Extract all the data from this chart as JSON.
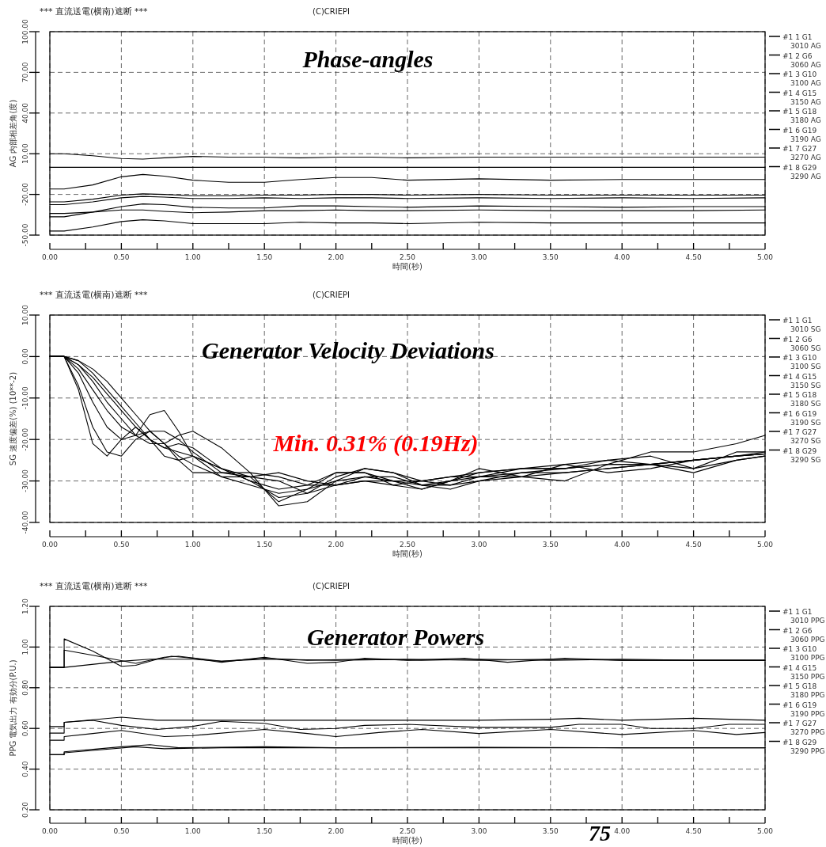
{
  "chart_data": [
    {
      "type": "line",
      "title": "Phase-angles",
      "subtitle": "*** 直流送電(横南)遮断 ***",
      "xlabel": "時間(秒)",
      "ylabel": "AG 内部相差角(度)",
      "annotations": [
        "(C)CRIEPI"
      ],
      "xlim": [
        0,
        5
      ],
      "ylim": [
        -50,
        100
      ],
      "grid": true,
      "legend": "right",
      "line_style": "solid",
      "xticks": [
        {
          "value": 0,
          "label": "0.00"
        },
        {
          "value": 0.25,
          "label": null
        },
        {
          "value": 0.5,
          "label": "0.50"
        },
        {
          "value": 0.75,
          "label": null
        },
        {
          "value": 1,
          "label": "1.00"
        },
        {
          "value": 1.25,
          "label": null
        },
        {
          "value": 1.5,
          "label": "1.50"
        },
        {
          "value": 1.75,
          "label": null
        },
        {
          "value": 2,
          "label": "2.00"
        },
        {
          "value": 2.25,
          "label": null
        },
        {
          "value": 2.5,
          "label": "2.50"
        },
        {
          "value": 2.75,
          "label": null
        },
        {
          "value": 3,
          "label": "3.00"
        },
        {
          "value": 3.25,
          "label": null
        },
        {
          "value": 3.5,
          "label": "3.50"
        },
        {
          "value": 3.75,
          "label": null
        },
        {
          "value": 4,
          "label": "4.00"
        },
        {
          "value": 4.25,
          "label": null
        },
        {
          "value": 4.5,
          "label": "4.50"
        },
        {
          "value": 4.75,
          "label": null
        },
        {
          "value": 5,
          "label": "5.00"
        }
      ],
      "yticks": [
        {
          "value": 100,
          "label": "100.00"
        },
        {
          "value": 70,
          "label": "70.00"
        },
        {
          "value": 40,
          "label": "40.00"
        },
        {
          "value": 10,
          "label": "10.00"
        },
        {
          "value": -20,
          "label": "-20.00"
        },
        {
          "value": -50,
          "label": "-50.00"
        }
      ],
      "x": [
        0,
        0.1,
        0.3,
        0.5,
        0.65,
        0.8,
        1.0,
        1.25,
        1.5,
        1.75,
        2.0,
        2.25,
        2.5,
        3.0,
        3.5,
        4.0,
        4.5,
        5.0
      ],
      "series": [
        {
          "name": "#1 1 G1 3010 AG",
          "color": "#000000",
          "values": [
            -16,
            -16,
            -13,
            -7,
            -5.3,
            -6.5,
            -9.5,
            -11,
            -11,
            -9,
            -7.5,
            -7.5,
            -9.5,
            -8.5,
            -9.5,
            -9,
            -9,
            -9
          ]
        },
        {
          "name": "#1 2 G6 3060 AG",
          "color": "#000000",
          "values": [
            -25.5,
            -25.5,
            -23.5,
            -20.5,
            -19.6,
            -20,
            -21,
            -21,
            -20.5,
            -20.5,
            -20,
            -20,
            -20.5,
            -20,
            -20.5,
            -20.5,
            -20.5,
            -20.5
          ]
        },
        {
          "name": "#1 3 G10 3100 AG",
          "color": "#000000",
          "values": [
            -27.5,
            -27.5,
            -25.5,
            -22.5,
            -21.5,
            -22,
            -23,
            -23,
            -22.5,
            -23,
            -22.5,
            -22.5,
            -23,
            -22.5,
            -23,
            -22.5,
            -23,
            -22.5
          ]
        },
        {
          "name": "#1 4 G15 3150 AG",
          "color": "#000000",
          "values": [
            0,
            0,
            0,
            0,
            0,
            0,
            0,
            0,
            0,
            0,
            0,
            0,
            0,
            0,
            0,
            0,
            0,
            0
          ]
        },
        {
          "name": "#1 5 G18 3180 AG",
          "color": "#000000",
          "values": [
            10,
            10,
            8.5,
            6.5,
            6,
            7,
            8,
            7.5,
            7.5,
            7,
            7.5,
            7.5,
            7,
            7.5,
            7.5,
            7.5,
            7.5,
            7.5
          ]
        },
        {
          "name": "#1 6 G19 3190 AG",
          "color": "#000000",
          "values": [
            -34,
            -34,
            -33,
            -31.5,
            -31.5,
            -32.5,
            -33.5,
            -33,
            -32,
            -32,
            -31.5,
            -32,
            -32,
            -31.5,
            -32,
            -32,
            -32,
            -31.5
          ]
        },
        {
          "name": "#1 7 G27 3270 AG",
          "color": "#000000",
          "values": [
            -36.5,
            -36.5,
            -33,
            -29,
            -27,
            -27.5,
            -29.5,
            -30,
            -30,
            -28.5,
            -28.5,
            -29,
            -29.5,
            -28.5,
            -29,
            -29.5,
            -29,
            -29
          ]
        },
        {
          "name": "#1 8 G29 3290 AG",
          "color": "#000000",
          "values": [
            -47,
            -47,
            -44,
            -40,
            -38.7,
            -39.5,
            -41.5,
            -41.5,
            -41.5,
            -40.5,
            -41,
            -41,
            -41.5,
            -40.5,
            -41,
            -41,
            -41,
            -41
          ]
        }
      ]
    },
    {
      "type": "line",
      "title": "Generator Velocity Deviations",
      "subtitle": "*** 直流送電(横南)遮断 ***",
      "xlabel": "時間(秒)",
      "ylabel": "SG 速度偏差(%) (10**-2)",
      "annotations": [
        "(C)CRIEPI",
        "Min. 0.31% (0.19Hz)"
      ],
      "xlim": [
        0,
        5
      ],
      "ylim": [
        -40,
        10
      ],
      "grid": true,
      "legend": "right",
      "line_style": "solid",
      "xticks": [
        {
          "value": 0,
          "label": "0.00"
        },
        {
          "value": 0.25,
          "label": null
        },
        {
          "value": 0.5,
          "label": "0.50"
        },
        {
          "value": 0.75,
          "label": null
        },
        {
          "value": 1,
          "label": "1.00"
        },
        {
          "value": 1.25,
          "label": null
        },
        {
          "value": 1.5,
          "label": "1.50"
        },
        {
          "value": 1.75,
          "label": null
        },
        {
          "value": 2,
          "label": "2.00"
        },
        {
          "value": 2.25,
          "label": null
        },
        {
          "value": 2.5,
          "label": "2.50"
        },
        {
          "value": 2.75,
          "label": null
        },
        {
          "value": 3,
          "label": "3.00"
        },
        {
          "value": 3.25,
          "label": null
        },
        {
          "value": 3.5,
          "label": "3.50"
        },
        {
          "value": 3.75,
          "label": null
        },
        {
          "value": 4,
          "label": "4.00"
        },
        {
          "value": 4.25,
          "label": null
        },
        {
          "value": 4.5,
          "label": "4.50"
        },
        {
          "value": 4.75,
          "label": null
        },
        {
          "value": 5,
          "label": "5.00"
        }
      ],
      "yticks": [
        {
          "value": 10,
          "label": "10.00"
        },
        {
          "value": 0,
          "label": "0.00"
        },
        {
          "value": -10,
          "label": "-10.00"
        },
        {
          "value": -20,
          "label": "-20.00"
        },
        {
          "value": -30,
          "label": "-30.00"
        },
        {
          "value": -40,
          "label": "-40.00"
        }
      ],
      "x": [
        0,
        0.1,
        0.2,
        0.3,
        0.4,
        0.5,
        0.6,
        0.7,
        0.8,
        0.9,
        1.0,
        1.2,
        1.4,
        1.6,
        1.8,
        2.0,
        2.2,
        2.4,
        2.6,
        2.8,
        3.0,
        3.3,
        3.6,
        3.9,
        4.2,
        4.5,
        4.8,
        5.0
      ],
      "series": [
        {
          "name": "#1 1 G1 3010 SG",
          "color": "#000000",
          "values": [
            0,
            0,
            -1,
            -3,
            -6,
            -10,
            -14,
            -18,
            -21,
            -24,
            -26,
            -29,
            -31,
            -33,
            -32,
            -30,
            -29,
            -30,
            -30,
            -29,
            -28,
            -27,
            -27,
            -26,
            -26,
            -25,
            -24,
            -23.5
          ]
        },
        {
          "name": "#1 2 G6 3060 SG",
          "color": "#000000",
          "values": [
            0,
            0,
            -2,
            -5,
            -9,
            -13,
            -17,
            -20,
            -22,
            -23,
            -24,
            -27,
            -30,
            -34,
            -33,
            -29,
            -27,
            -28,
            -31,
            -31,
            -29,
            -27,
            -26,
            -28,
            -27,
            -25,
            -24,
            -23
          ]
        },
        {
          "name": "#1 3 G10 3100 SG",
          "color": "#000000",
          "values": [
            0,
            0,
            -3,
            -8,
            -13,
            -17,
            -19,
            -18,
            -18,
            -20,
            -23,
            -28,
            -29,
            -28,
            -30,
            -31,
            -30,
            -30,
            -31,
            -30,
            -29,
            -29,
            -28,
            -27,
            -26,
            -25,
            -24,
            -23.5
          ]
        },
        {
          "name": "#1 4 G15 3150 SG",
          "color": "#000000",
          "values": [
            0,
            0,
            -4,
            -11,
            -17,
            -20,
            -19,
            -14,
            -13,
            -18,
            -24,
            -29,
            -29,
            -30,
            -33,
            -31,
            -29,
            -29,
            -31,
            -32,
            -30,
            -28,
            -27,
            -26,
            -26,
            -27,
            -25,
            -24
          ]
        },
        {
          "name": "#1 5 G18 3180 SG",
          "color": "#000000",
          "values": [
            0,
            0,
            -7,
            -17,
            -23,
            -24,
            -20,
            -18,
            -21,
            -25,
            -28,
            -28,
            -28,
            -29,
            -31,
            -31,
            -30,
            -31,
            -30,
            -29,
            -29,
            -28,
            -28,
            -27,
            -26,
            -25,
            -24,
            -23.5
          ]
        },
        {
          "name": "#1 6 G19 3190 SG",
          "color": "#000000",
          "values": [
            0,
            0,
            -8,
            -21,
            -24,
            -20,
            -17,
            -20,
            -24,
            -25,
            -24,
            -27,
            -29,
            -35,
            -32,
            -28,
            -28,
            -31,
            -32,
            -30,
            -28,
            -27,
            -27,
            -25,
            -24,
            -27,
            -23,
            -23
          ]
        },
        {
          "name": "#1 7 G27 3270 SG",
          "color": "#000000",
          "values": [
            0,
            0,
            -2,
            -6,
            -11,
            -15,
            -19,
            -21,
            -21,
            -19,
            -18,
            -22,
            -28,
            -36,
            -35,
            -30,
            -27,
            -28,
            -30,
            -31,
            -30,
            -29,
            -26,
            -25,
            -26,
            -28,
            -25,
            -24
          ]
        },
        {
          "name": "#1 8 G29 3290 SG",
          "color": "#000000",
          "values": [
            0,
            0,
            -1,
            -4,
            -8,
            -12,
            -16,
            -20,
            -22,
            -21,
            -22,
            -27,
            -30,
            -32,
            -31,
            -28,
            -28,
            -30,
            -32,
            -30,
            -27,
            -29,
            -30,
            -26,
            -23,
            -23,
            -21,
            -19
          ]
        }
      ]
    },
    {
      "type": "line",
      "title": "Generator Powers",
      "subtitle": "*** 直流送電(横南)遮断 ***",
      "xlabel": "時間(秒)",
      "ylabel": "PPG 電気出力 有効分(P.U.)",
      "annotations": [
        "(C)CRIEPI",
        "75"
      ],
      "xlim": [
        0,
        5
      ],
      "ylim": [
        0.2,
        1.2
      ],
      "grid": true,
      "legend": "right",
      "line_style": "solid",
      "xticks": [
        {
          "value": 0,
          "label": "0.00"
        },
        {
          "value": 0.25,
          "label": null
        },
        {
          "value": 0.5,
          "label": "0.50"
        },
        {
          "value": 0.75,
          "label": null
        },
        {
          "value": 1,
          "label": "1.00"
        },
        {
          "value": 1.25,
          "label": null
        },
        {
          "value": 1.5,
          "label": "1.50"
        },
        {
          "value": 1.75,
          "label": null
        },
        {
          "value": 2,
          "label": "2.00"
        },
        {
          "value": 2.25,
          "label": null
        },
        {
          "value": 2.5,
          "label": "2.50"
        },
        {
          "value": 2.75,
          "label": null
        },
        {
          "value": 3,
          "label": "3.00"
        },
        {
          "value": 3.25,
          "label": null
        },
        {
          "value": 3.5,
          "label": "3.50"
        },
        {
          "value": 3.75,
          "label": null
        },
        {
          "value": 4,
          "label": "4.00"
        },
        {
          "value": 4.25,
          "label": null
        },
        {
          "value": 4.5,
          "label": "4.50"
        },
        {
          "value": 4.75,
          "label": null
        },
        {
          "value": 5,
          "label": "5.00"
        }
      ],
      "yticks": [
        {
          "value": 1.2,
          "label": "1.20"
        },
        {
          "value": 1.0,
          "label": "1.00"
        },
        {
          "value": 0.8,
          "label": "0.80"
        },
        {
          "value": 0.6,
          "label": "0.60"
        },
        {
          "value": 0.4,
          "label": "0.40"
        },
        {
          "value": 0.2,
          "label": "0.20"
        }
      ],
      "series": [
        {
          "name": "#1 1 G1 3010 PPG",
          "color": "#000000",
          "x": [
            0,
            0.1,
            0.5,
            0.7,
            1.0,
            1.2,
            1.5,
            2.0,
            2.5,
            3.0,
            3.5,
            4.0,
            4.5,
            5.0
          ],
          "values": [
            0.9,
            0.9,
            0.93,
            0.94,
            0.94,
            0.93,
            0.94,
            0.935,
            0.94,
            0.935,
            0.94,
            0.935,
            0.935,
            0.935
          ]
        },
        {
          "name": "#1 2 G6 3060 PPG",
          "color": "#000000",
          "x": [
            0,
            0.1,
            0.1,
            0.5,
            0.75,
            1.0,
            1.5,
            2.0,
            2.5,
            3.0,
            3.5,
            3.7,
            4.0,
            4.5,
            5.0
          ],
          "values": [
            0.609,
            0.609,
            0.63,
            0.655,
            0.64,
            0.64,
            0.64,
            0.64,
            0.64,
            0.64,
            0.645,
            0.65,
            0.64,
            0.65,
            0.64
          ]
        },
        {
          "name": "#1 3 G10 3100 PPG",
          "color": "#000000",
          "x": [
            0,
            0.1,
            0.1,
            0.3,
            0.5,
            0.8,
            1.0,
            1.5,
            1.8,
            2.0,
            2.3,
            2.6,
            3.0,
            3.5,
            4.0,
            4.5,
            4.8,
            5.0
          ],
          "values": [
            0.542,
            0.542,
            0.56,
            0.575,
            0.59,
            0.56,
            0.565,
            0.595,
            0.575,
            0.56,
            0.58,
            0.595,
            0.575,
            0.595,
            0.57,
            0.59,
            0.57,
            0.58
          ]
        },
        {
          "name": "#1 4 G15 3150 PPG",
          "color": "#000000",
          "x": [
            0,
            0.1,
            0.1,
            0.3,
            0.5,
            0.6,
            0.75,
            0.85,
            1.0,
            1.2,
            1.5,
            1.8,
            2.0,
            2.2,
            2.5,
            2.9,
            3.2,
            3.6,
            4.0,
            4.5,
            5.0
          ],
          "values": [
            0.9,
            0.9,
            1.04,
            0.98,
            0.905,
            0.91,
            0.94,
            0.955,
            0.945,
            0.925,
            0.95,
            0.92,
            0.925,
            0.945,
            0.935,
            0.945,
            0.925,
            0.945,
            0.935,
            0.935,
            0.935
          ]
        },
        {
          "name": "#1 5 G18 3180 PPG",
          "color": "#000000",
          "x": [
            0,
            0.1,
            0.1,
            0.3,
            0.6,
            0.8,
            0.9,
            1.2,
            1.5,
            1.8,
            2.2,
            2.6,
            3.0,
            3.5,
            4.0,
            4.5,
            5.0
          ],
          "values": [
            0.9,
            0.9,
            0.985,
            0.96,
            0.92,
            0.95,
            0.955,
            0.93,
            0.945,
            0.935,
            0.94,
            0.935,
            0.94,
            0.935,
            0.94,
            0.935,
            0.935
          ]
        },
        {
          "name": "#1 6 G19 3190 PPG",
          "color": "#000000",
          "x": [
            0,
            0.1,
            0.1,
            0.3,
            0.5,
            0.75,
            1.0,
            1.2,
            1.5,
            1.75,
            2.0,
            2.2,
            2.5,
            3.0,
            3.5,
            3.7,
            4.0,
            4.2,
            4.5,
            4.75,
            5.0
          ],
          "values": [
            0.577,
            0.577,
            0.63,
            0.64,
            0.615,
            0.595,
            0.61,
            0.635,
            0.625,
            0.595,
            0.6,
            0.615,
            0.62,
            0.605,
            0.605,
            0.62,
            0.62,
            0.6,
            0.6,
            0.62,
            0.62
          ]
        },
        {
          "name": "#1 7 G27 3270 PPG",
          "color": "#000000",
          "x": [
            0,
            0.1,
            0.1,
            0.35,
            0.5,
            0.7,
            0.9,
            1.5,
            2.0,
            3.0,
            4.0,
            5.0
          ],
          "values": [
            0.471,
            0.471,
            0.485,
            0.5,
            0.51,
            0.52,
            0.505,
            0.51,
            0.505,
            0.505,
            0.505,
            0.505
          ]
        },
        {
          "name": "#1 8 G29 3290 PPG",
          "color": "#000000",
          "x": [
            0,
            0.1,
            0.1,
            0.35,
            0.6,
            0.8,
            1.2,
            2.0,
            3.0,
            4.0,
            5.0
          ],
          "values": [
            0.471,
            0.471,
            0.48,
            0.495,
            0.51,
            0.5,
            0.505,
            0.505,
            0.507,
            0.505,
            0.505
          ]
        }
      ]
    }
  ]
}
